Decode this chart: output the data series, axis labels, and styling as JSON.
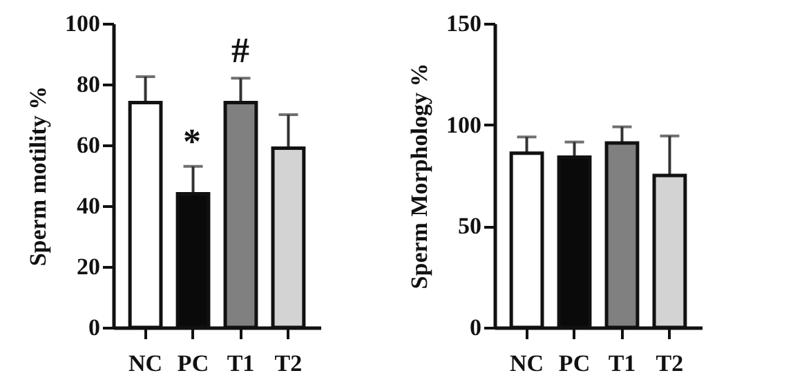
{
  "chart_data": [
    {
      "type": "bar",
      "ylabel": "Sperm motility %",
      "categories": [
        "NC",
        "PC",
        "T1",
        "T2"
      ],
      "values": [
        74,
        44,
        74,
        59
      ],
      "colors": [
        "#ffffff",
        "#0a0a0a",
        "#808080",
        "#d3d3d3"
      ],
      "errors": [
        8.5,
        9,
        8,
        11
      ],
      "ylim": [
        0,
        100
      ],
      "yticks": [
        0,
        20,
        40,
        60,
        80,
        100
      ],
      "annotations": [
        "*",
        "#"
      ]
    },
    {
      "type": "bar",
      "ylabel": "Sperm Morphology %",
      "categories": [
        "NC",
        "PC",
        "T1",
        "T2"
      ],
      "values": [
        86,
        84,
        91,
        75
      ],
      "colors": [
        "#ffffff",
        "#0a0a0a",
        "#808080",
        "#d3d3d3"
      ],
      "errors": [
        8,
        7.5,
        8,
        19.5
      ],
      "ylim": [
        0,
        150
      ],
      "yticks": [
        0,
        50,
        100,
        150
      ]
    }
  ]
}
